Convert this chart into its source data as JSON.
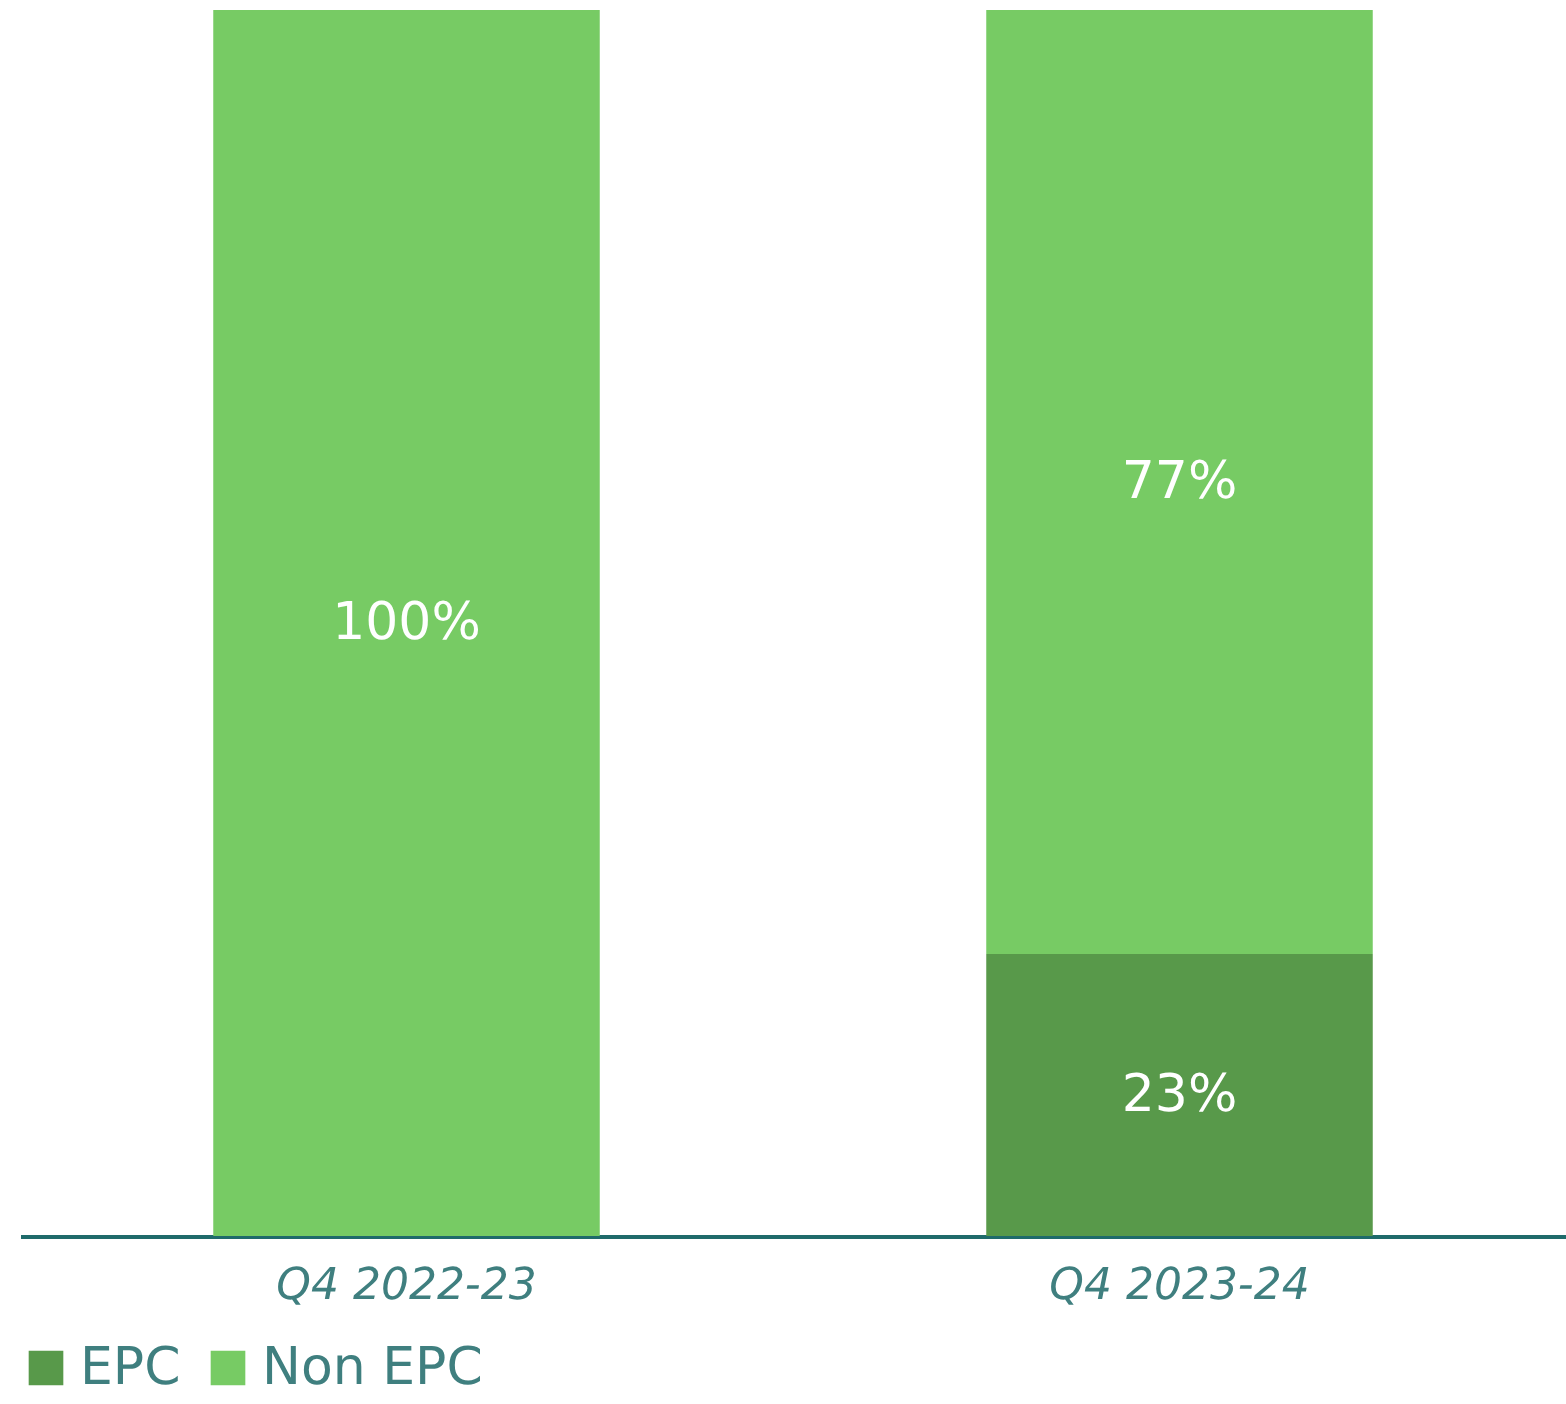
{
  "chart_data": {
    "type": "bar",
    "stacked": true,
    "categories": [
      "Q4 2022-23",
      "Q4 2023-24"
    ],
    "series": [
      {
        "name": "EPC",
        "color": "#58994a",
        "values": [
          0,
          23
        ],
        "value_labels": [
          null,
          "23%"
        ]
      },
      {
        "name": "Non EPC",
        "color": "#77cb64",
        "values": [
          100,
          77
        ],
        "value_labels": [
          "100%",
          "77%"
        ]
      }
    ],
    "ylim": [
      0,
      100
    ],
    "legend": "bottom"
  }
}
